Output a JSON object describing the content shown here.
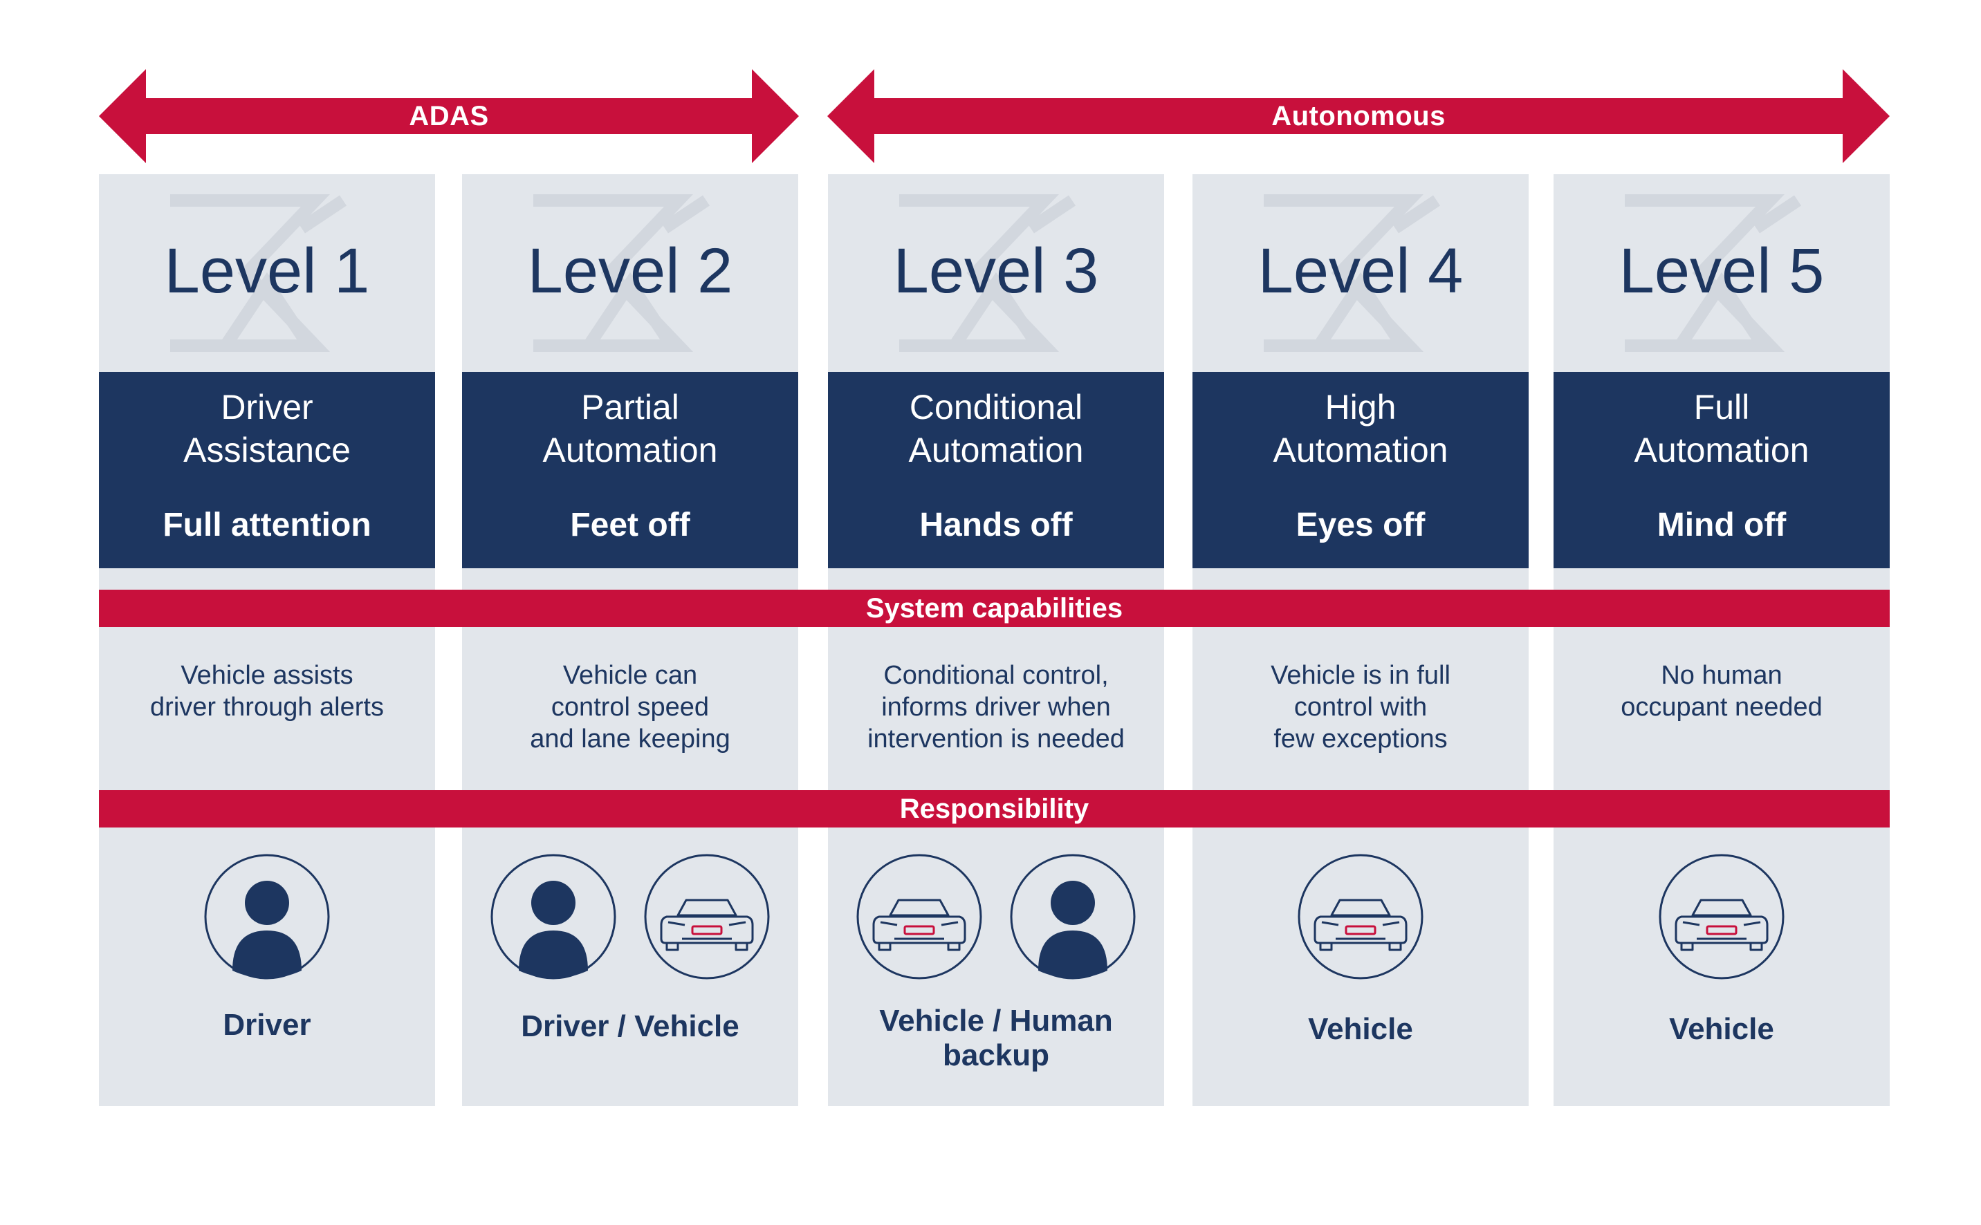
{
  "colors": {
    "red": "#c8103c",
    "navy": "#1d3660",
    "panel": "#e2e6eb",
    "background": "#ffffff"
  },
  "arrows": {
    "adas_label": "ADAS",
    "autonomous_label": "Autonomous"
  },
  "bands": {
    "capabilities": "System capabilities",
    "responsibility": "Responsibility"
  },
  "levels": [
    {
      "title": "Level 1",
      "name": "Driver\nAssistance",
      "tag": "Full attention",
      "capability": "Vehicle assists\ndriver through alerts",
      "icons": [
        "person-icon"
      ],
      "responsibility": "Driver"
    },
    {
      "title": "Level 2",
      "name": "Partial\nAutomation",
      "tag": "Feet off",
      "capability": "Vehicle can\ncontrol speed\nand lane keeping",
      "icons": [
        "person-icon",
        "car-icon"
      ],
      "responsibility": "Driver / Vehicle"
    },
    {
      "title": "Level 3",
      "name": "Conditional\nAutomation",
      "tag": "Hands off",
      "capability": "Conditional control,\ninforms driver when\nintervention is needed",
      "icons": [
        "car-icon",
        "person-icon"
      ],
      "responsibility": "Vehicle / Human\nbackup"
    },
    {
      "title": "Level 4",
      "name": "High\nAutomation",
      "tag": "Eyes off",
      "capability": "Vehicle is in full\ncontrol with\nfew exceptions",
      "icons": [
        "car-icon"
      ],
      "responsibility": "Vehicle"
    },
    {
      "title": "Level 5",
      "name": "Full\nAutomation",
      "tag": "Mind off",
      "capability": "No human\noccupant needed",
      "icons": [
        "car-icon"
      ],
      "responsibility": "Vehicle"
    }
  ]
}
